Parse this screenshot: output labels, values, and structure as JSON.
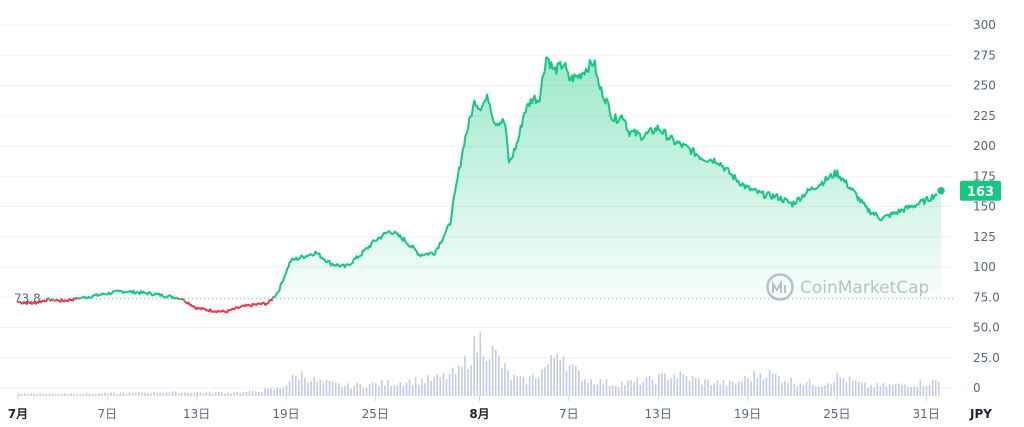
{
  "chart_data": {
    "type": "line",
    "currency": "JPY",
    "watermark": "CoinMarketCap",
    "reference_value": 73.8,
    "reference_label": "73.8",
    "current_value": 163,
    "current_label": "163",
    "ylim": [
      0,
      300
    ],
    "yticks": [
      0,
      25,
      50,
      75,
      100,
      125,
      150,
      175,
      200,
      225,
      250,
      275,
      300
    ],
    "ytick_labels": [
      "0",
      "25.0",
      "50.0",
      "75.0",
      "100",
      "125",
      "150",
      "175",
      "200",
      "225",
      "250",
      "275",
      "300"
    ],
    "x_tick_labels": [
      {
        "day": 0,
        "label": "7月",
        "bold": true
      },
      {
        "day": 6,
        "label": "7日",
        "bold": false
      },
      {
        "day": 12,
        "label": "13日",
        "bold": false
      },
      {
        "day": 18,
        "label": "19日",
        "bold": false
      },
      {
        "day": 24,
        "label": "25日",
        "bold": false
      },
      {
        "day": 31,
        "label": "8月",
        "bold": true
      },
      {
        "day": 37,
        "label": "7日",
        "bold": false
      },
      {
        "day": 43,
        "label": "13日",
        "bold": false
      },
      {
        "day": 49,
        "label": "19日",
        "bold": false
      },
      {
        "day": 55,
        "label": "25日",
        "bold": false
      },
      {
        "day": 61,
        "label": "31日",
        "bold": false
      }
    ],
    "x_range_days": [
      -0.4,
      62.8
    ],
    "series": [
      {
        "values": [
          [
            0,
            71
          ],
          [
            1,
            70
          ],
          [
            2,
            73
          ],
          [
            3,
            72
          ],
          [
            4,
            74
          ],
          [
            5,
            76
          ],
          [
            6,
            78
          ],
          [
            7,
            80
          ],
          [
            8,
            79
          ],
          [
            9,
            78
          ],
          [
            10,
            76
          ],
          [
            11,
            74
          ],
          [
            12,
            66
          ],
          [
            13,
            64
          ],
          [
            14,
            63
          ],
          [
            15,
            67
          ],
          [
            16,
            69
          ],
          [
            16.8,
            70
          ],
          [
            17.5,
            80
          ],
          [
            18.3,
            105
          ],
          [
            19,
            108
          ],
          [
            20,
            112
          ],
          [
            21,
            103
          ],
          [
            22,
            100
          ],
          [
            23,
            110
          ],
          [
            24,
            122
          ],
          [
            25,
            130
          ],
          [
            26,
            122
          ],
          [
            27,
            110
          ],
          [
            28,
            112
          ],
          [
            29,
            135
          ],
          [
            29.6,
            178
          ],
          [
            30,
            205
          ],
          [
            30.7,
            238
          ],
          [
            31,
            232
          ],
          [
            31.6,
            240
          ],
          [
            32,
            220
          ],
          [
            32.7,
            220
          ],
          [
            33,
            185
          ],
          [
            33.6,
            205
          ],
          [
            34,
            228
          ],
          [
            34.6,
            240
          ],
          [
            35,
            238
          ],
          [
            35.5,
            275
          ],
          [
            36,
            262
          ],
          [
            36.7,
            268
          ],
          [
            37,
            255
          ],
          [
            37.7,
            258
          ],
          [
            38,
            262
          ],
          [
            38.7,
            270
          ],
          [
            39,
            250
          ],
          [
            39.5,
            238
          ],
          [
            40,
            222
          ],
          [
            40.7,
            225
          ],
          [
            41,
            212
          ],
          [
            42,
            208
          ],
          [
            43,
            215
          ],
          [
            44,
            204
          ],
          [
            45,
            198
          ],
          [
            46,
            190
          ],
          [
            47,
            188
          ],
          [
            48,
            175
          ],
          [
            49,
            165
          ],
          [
            50,
            160
          ],
          [
            51,
            158
          ],
          [
            52,
            152
          ],
          [
            53,
            162
          ],
          [
            54,
            170
          ],
          [
            55,
            178
          ],
          [
            56,
            164
          ],
          [
            57,
            148
          ],
          [
            58,
            140
          ],
          [
            59,
            145
          ],
          [
            60,
            150
          ],
          [
            61,
            155
          ],
          [
            62,
            163
          ]
        ]
      },
      {
        "name": "volume",
        "values": [
          [
            0,
            2
          ],
          [
            5,
            2
          ],
          [
            10,
            3
          ],
          [
            15,
            3
          ],
          [
            17.5,
            6
          ],
          [
            18.3,
            14
          ],
          [
            19,
            18
          ],
          [
            20,
            12
          ],
          [
            22,
            8
          ],
          [
            24,
            10
          ],
          [
            26,
            12
          ],
          [
            28,
            14
          ],
          [
            29.6,
            20
          ],
          [
            30.5,
            38
          ],
          [
            31,
            46
          ],
          [
            32,
            34
          ],
          [
            33,
            16
          ],
          [
            34,
            12
          ],
          [
            35,
            20
          ],
          [
            35.8,
            28
          ],
          [
            36.3,
            42
          ],
          [
            37,
            24
          ],
          [
            38,
            14
          ],
          [
            40,
            10
          ],
          [
            42,
            12
          ],
          [
            44,
            18
          ],
          [
            46,
            12
          ],
          [
            48,
            10
          ],
          [
            50,
            20
          ],
          [
            52,
            12
          ],
          [
            54,
            10
          ],
          [
            55,
            16
          ],
          [
            57,
            8
          ],
          [
            59,
            9
          ],
          [
            61,
            11
          ],
          [
            62,
            12
          ]
        ]
      }
    ],
    "colors": {
      "up": "#16c784",
      "down": "#ea3943",
      "volume": "#c5cbe4",
      "reference": "#a1a7bb"
    }
  }
}
